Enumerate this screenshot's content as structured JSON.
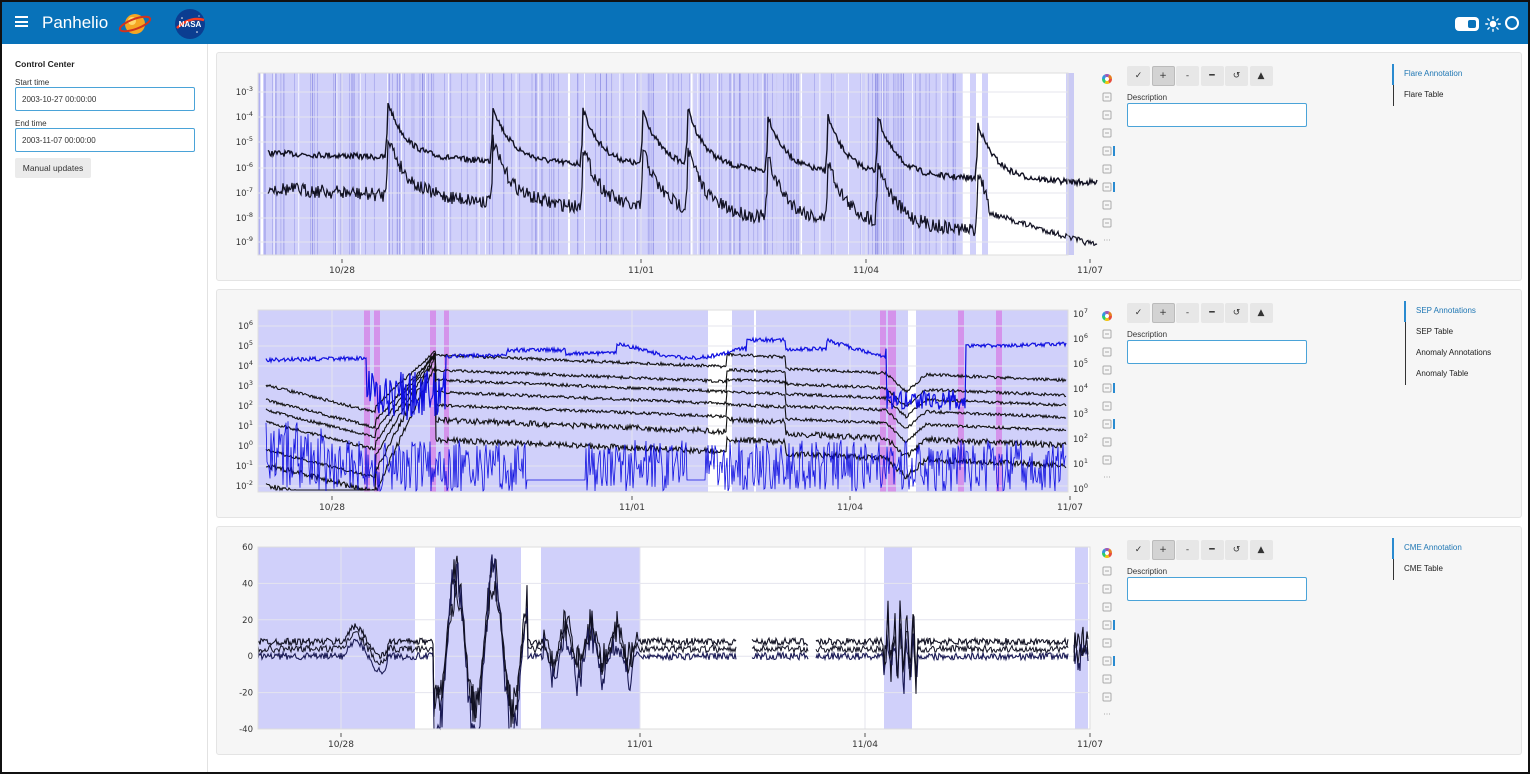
{
  "header": {
    "title": "Panhelio"
  },
  "sidebar": {
    "heading": "Control Center",
    "start_label": "Start time",
    "start_value": "2003-10-27 00:00:00",
    "end_label": "End time",
    "end_value": "2003-11-07 00:00:00",
    "manual_button": "Manual updates"
  },
  "toolbar": {
    "check": "✓",
    "plus": "+",
    "minus": "-",
    "dash": "━",
    "reset": "↺",
    "up": "▲"
  },
  "description_label": "Description",
  "panels": [
    {
      "tabs": [
        "Flare Annotation",
        "Flare Table"
      ]
    },
    {
      "tabs": [
        "SEP Annotations",
        "SEP Table",
        "Anomaly Annotations",
        "Anomaly Table"
      ]
    },
    {
      "tabs": [
        "CME Annotation",
        "CME Table"
      ]
    }
  ],
  "plot_icons": [
    "bokeh-logo-icon",
    "pan-icon",
    "lasso-icon",
    "box-zoom-icon",
    "box-select-icon",
    "zoom-xy-icon",
    "tap-icon",
    "save-icon",
    "reset-icon",
    "more-icon"
  ],
  "chart_data": [
    {
      "type": "line",
      "x_ticks": [
        "10/28",
        "11/01",
        "11/04",
        "11/07"
      ],
      "y_ticks": [
        "10^-9",
        "10^-8",
        "10^-7",
        "10^-6",
        "10^-5",
        "10^-4",
        "10^-3"
      ],
      "y_scale": "log",
      "colors": {
        "line": "#111122",
        "annotation": "#8a8af2"
      }
    },
    {
      "type": "line",
      "x_ticks": [
        "10/28",
        "11/01",
        "11/04",
        "11/07"
      ],
      "y_ticks": [
        "10^-2",
        "10^-1",
        "10^0",
        "10^1",
        "10^2",
        "10^3",
        "10^4",
        "10^5",
        "10^6"
      ],
      "y2_ticks": [
        "10^0",
        "10^1",
        "10^2",
        "10^3",
        "10^4",
        "10^5",
        "10^6",
        "10^7"
      ],
      "y_scale": "log",
      "colors": {
        "line": "#111111",
        "line2": "#1010e0",
        "annotation": "#8a8af2",
        "anomaly": "#d67fe6"
      }
    },
    {
      "type": "line",
      "x_ticks": [
        "10/28",
        "11/01",
        "11/04",
        "11/07"
      ],
      "y_ticks": [
        "-40",
        "-20",
        "0",
        "20",
        "40",
        "60"
      ],
      "ylim": [
        -40,
        60
      ],
      "colors": {
        "line": "#111122",
        "annotation": "#8a8af2"
      }
    }
  ]
}
